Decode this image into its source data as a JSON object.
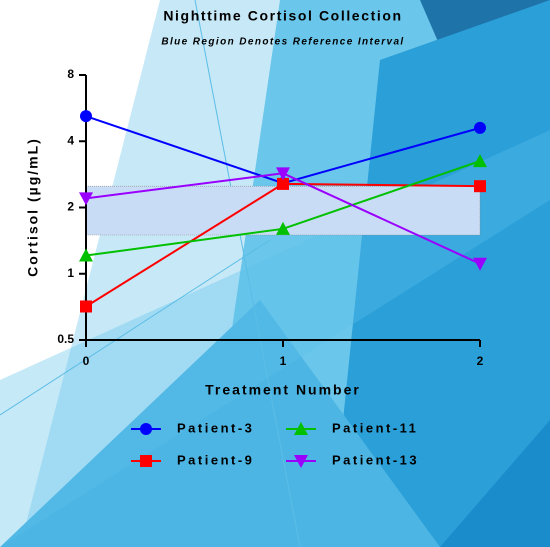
{
  "chart_data": {
    "type": "line",
    "title": "Nighttime Cortisol Collection",
    "subtitle": "Blue Region Denotes Reference Interval",
    "x_label": "Treatment Number",
    "y_label": "Cortisol (µg/mL)",
    "x": [
      0,
      1,
      2
    ],
    "xlim": [
      0,
      2
    ],
    "xticks": [
      0,
      1,
      2
    ],
    "ylim": [
      0.5,
      8
    ],
    "yticks": [
      0.5,
      1,
      2,
      4,
      8
    ],
    "yscale": "log",
    "reference_interval": [
      1.5,
      2.5
    ],
    "reference_color": "#c9dcf5",
    "series": [
      {
        "name": "Patient-3",
        "color": "#0000ff",
        "marker": "circle",
        "values": [
          5.2,
          2.58,
          4.6
        ]
      },
      {
        "name": "Patient-9",
        "color": "#ff0000",
        "marker": "square",
        "values": [
          0.71,
          2.56,
          2.5
        ]
      },
      {
        "name": "Patient-11",
        "color": "#00c000",
        "marker": "triangle-up",
        "values": [
          1.21,
          1.6,
          3.25
        ]
      },
      {
        "name": "Patient-13",
        "color": "#9900ff",
        "marker": "triangle-down",
        "values": [
          2.2,
          2.86,
          1.11
        ]
      }
    ]
  }
}
